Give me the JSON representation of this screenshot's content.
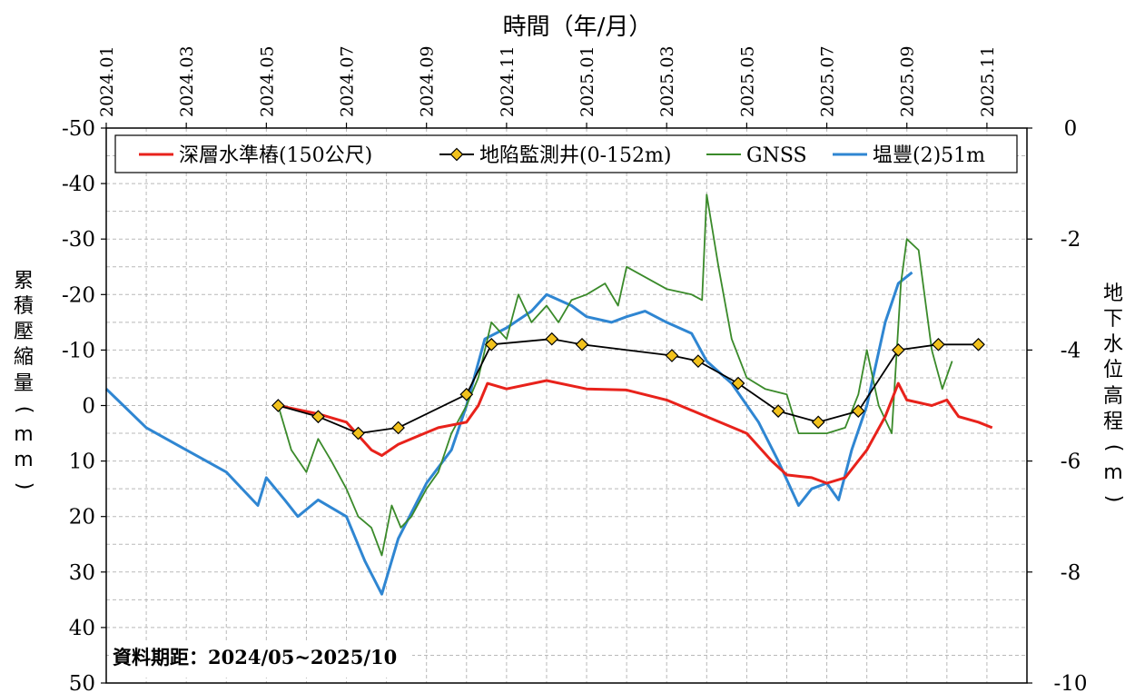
{
  "chart_data": {
    "type": "line",
    "xlabel": "時間（年/月）",
    "ylabel_left": "累積壓縮量(mm)",
    "ylabel_right": "地下水位高程(m)",
    "x_ticks": [
      "2024.01",
      "2024.03",
      "2024.05",
      "2024.07",
      "2024.09",
      "2024.11",
      "2025.01",
      "2025.03",
      "2025.05",
      "2025.07",
      "2025.09",
      "2025.11"
    ],
    "x_range": [
      "2024.01",
      "2025.12"
    ],
    "y_left_range": [
      -50,
      50
    ],
    "y_left_inverted": true,
    "y_left_ticks": [
      "-50",
      "-40",
      "-30",
      "-20",
      "-10",
      "0",
      "10",
      "20",
      "30",
      "40",
      "50"
    ],
    "y_right_range": [
      0,
      -10
    ],
    "y_right_ticks": [
      "0",
      "-2",
      "-4",
      "-6",
      "-8",
      "-10"
    ],
    "grid": true,
    "legend_position": "top",
    "annotation": "資料期距：2024/05~2025/10",
    "series": [
      {
        "name": "深層水準樁(150公尺)",
        "color": "#e8221b",
        "axis": "left",
        "points": [
          [
            "2024.05.10",
            0
          ],
          [
            "2024.06.10",
            1.5
          ],
          [
            "2024.07.01",
            3
          ],
          [
            "2024.07.20",
            8
          ],
          [
            "2024.07.28",
            9
          ],
          [
            "2024.08.10",
            7
          ],
          [
            "2024.08.25",
            5.5
          ],
          [
            "2024.09.10",
            4
          ],
          [
            "2024.10.01",
            3
          ],
          [
            "2024.10.10",
            0
          ],
          [
            "2024.10.17",
            -4
          ],
          [
            "2024.11.01",
            -3
          ],
          [
            "2024.12.01",
            -4.5
          ],
          [
            "2025.01.01",
            -3
          ],
          [
            "2025.02.01",
            -2.8
          ],
          [
            "2025.03.01",
            -1
          ],
          [
            "2025.04.01",
            2
          ],
          [
            "2025.05.01",
            5
          ],
          [
            "2025.05.20",
            10
          ],
          [
            "2025.06.01",
            12.5
          ],
          [
            "2025.06.20",
            13
          ],
          [
            "2025.07.01",
            14
          ],
          [
            "2025.07.15",
            13
          ],
          [
            "2025.08.01",
            8
          ],
          [
            "2025.08.15",
            2
          ],
          [
            "2025.08.25",
            -4
          ],
          [
            "2025.09.01",
            -1
          ],
          [
            "2025.09.20",
            0
          ],
          [
            "2025.10.01",
            -1
          ],
          [
            "2025.10.10",
            2
          ],
          [
            "2025.10.25",
            3
          ],
          [
            "2025.11.05",
            4
          ]
        ]
      },
      {
        "name": "地陷監測井(0-152m)",
        "color": "#000000",
        "marker_color": "#f2c21d",
        "axis": "left",
        "points": [
          [
            "2024.05.10",
            0
          ],
          [
            "2024.06.10",
            2
          ],
          [
            "2024.07.10",
            5
          ],
          [
            "2024.08.10",
            4
          ],
          [
            "2024.10.01",
            -2
          ],
          [
            "2024.10.20",
            -11
          ],
          [
            "2024.12.05",
            -12
          ],
          [
            "2024.12.28",
            -11
          ],
          [
            "2025.03.05",
            -9
          ],
          [
            "2025.03.25",
            -8
          ],
          [
            "2025.04.25",
            -4
          ],
          [
            "2025.05.25",
            1
          ],
          [
            "2025.06.25",
            3
          ],
          [
            "2025.07.25",
            1
          ],
          [
            "2025.08.25",
            -10
          ],
          [
            "2025.09.25",
            -11
          ],
          [
            "2025.10.25",
            -11
          ]
        ]
      },
      {
        "name": "GNSS",
        "color": "#3a8a2a",
        "axis": "left",
        "points": [
          [
            "2024.05.10",
            0
          ],
          [
            "2024.05.20",
            8
          ],
          [
            "2024.06.01",
            12
          ],
          [
            "2024.06.10",
            6
          ],
          [
            "2024.06.20",
            10
          ],
          [
            "2024.07.01",
            15
          ],
          [
            "2024.07.10",
            20
          ],
          [
            "2024.07.20",
            22
          ],
          [
            "2024.07.28",
            27
          ],
          [
            "2024.08.05",
            18
          ],
          [
            "2024.08.12",
            22
          ],
          [
            "2024.08.20",
            20
          ],
          [
            "2024.09.01",
            15
          ],
          [
            "2024.09.10",
            12
          ],
          [
            "2024.09.20",
            5
          ],
          [
            "2024.10.01",
            0
          ],
          [
            "2024.10.10",
            -5
          ],
          [
            "2024.10.20",
            -15
          ],
          [
            "2024.11.01",
            -12
          ],
          [
            "2024.11.10",
            -20
          ],
          [
            "2024.11.20",
            -15
          ],
          [
            "2024.12.01",
            -18
          ],
          [
            "2024.12.10",
            -15
          ],
          [
            "2024.12.20",
            -19
          ],
          [
            "2025.01.01",
            -20
          ],
          [
            "2025.01.15",
            -22
          ],
          [
            "2025.01.25",
            -18
          ],
          [
            "2025.02.01",
            -25
          ],
          [
            "2025.03.01",
            -21
          ],
          [
            "2025.03.20",
            -20
          ],
          [
            "2025.03.28",
            -19
          ],
          [
            "2025.04.01",
            -38
          ],
          [
            "2025.04.10",
            -25
          ],
          [
            "2025.04.20",
            -12
          ],
          [
            "2025.05.01",
            -5
          ],
          [
            "2025.05.15",
            -3
          ],
          [
            "2025.06.01",
            -2
          ],
          [
            "2025.06.10",
            5
          ],
          [
            "2025.07.01",
            5
          ],
          [
            "2025.07.15",
            4
          ],
          [
            "2025.07.25",
            -2
          ],
          [
            "2025.08.01",
            -10
          ],
          [
            "2025.08.10",
            0
          ],
          [
            "2025.08.20",
            5
          ],
          [
            "2025.08.27",
            -22
          ],
          [
            "2025.09.01",
            -30
          ],
          [
            "2025.09.10",
            -28
          ],
          [
            "2025.09.20",
            -10
          ],
          [
            "2025.09.28",
            -3
          ],
          [
            "2025.10.05",
            -8
          ]
        ]
      },
      {
        "name": "塭豐(2)51m",
        "color": "#2f86d2",
        "axis": "left",
        "points": [
          [
            "2024.01.01",
            -3
          ],
          [
            "2024.02.01",
            4
          ],
          [
            "2024.03.01",
            8
          ],
          [
            "2024.04.01",
            12
          ],
          [
            "2024.04.25",
            18
          ],
          [
            "2024.05.01",
            13
          ],
          [
            "2024.05.15",
            17
          ],
          [
            "2024.05.25",
            20
          ],
          [
            "2024.06.10",
            17
          ],
          [
            "2024.07.01",
            20
          ],
          [
            "2024.07.15",
            28
          ],
          [
            "2024.07.28",
            34
          ],
          [
            "2024.08.10",
            24
          ],
          [
            "2024.09.01",
            14
          ],
          [
            "2024.09.20",
            8
          ],
          [
            "2024.10.01",
            0
          ],
          [
            "2024.10.15",
            -12
          ],
          [
            "2024.11.01",
            -14
          ],
          [
            "2024.11.20",
            -17
          ],
          [
            "2024.12.01",
            -20
          ],
          [
            "2024.12.20",
            -18
          ],
          [
            "2025.01.01",
            -16
          ],
          [
            "2025.01.20",
            -15
          ],
          [
            "2025.02.01",
            -16
          ],
          [
            "2025.02.15",
            -17
          ],
          [
            "2025.03.01",
            -15
          ],
          [
            "2025.03.20",
            -13
          ],
          [
            "2025.04.01",
            -8
          ],
          [
            "2025.04.20",
            -4
          ],
          [
            "2025.05.10",
            3
          ],
          [
            "2025.05.25",
            10
          ],
          [
            "2025.06.10",
            18
          ],
          [
            "2025.06.20",
            15
          ],
          [
            "2025.07.01",
            14
          ],
          [
            "2025.07.10",
            17
          ],
          [
            "2025.07.20",
            8
          ],
          [
            "2025.08.01",
            0
          ],
          [
            "2025.08.15",
            -15
          ],
          [
            "2025.08.25",
            -22
          ],
          [
            "2025.09.05",
            -24
          ]
        ]
      }
    ]
  }
}
